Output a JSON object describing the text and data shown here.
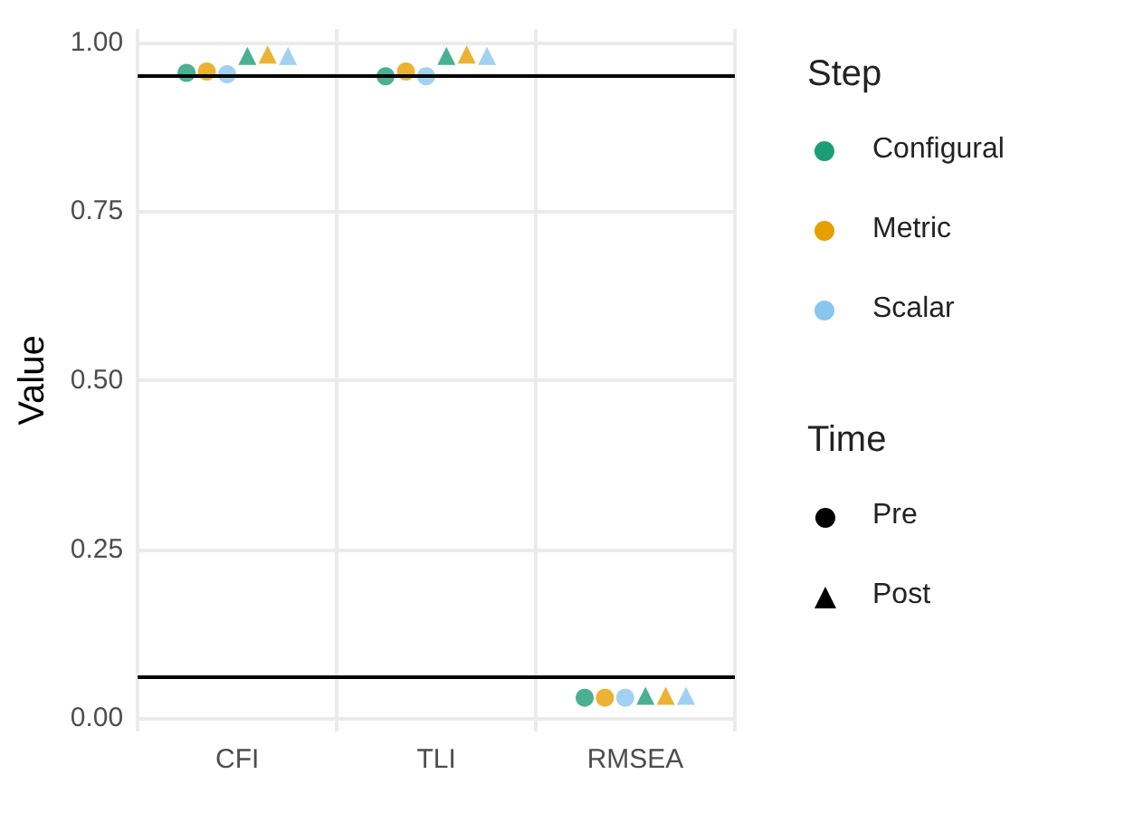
{
  "chart_data": {
    "type": "scatter",
    "ylabel": "Value",
    "categories": [
      "CFI",
      "TLI",
      "RMSEA"
    ],
    "ylim": [
      -0.02,
      1.02
    ],
    "yticks": [
      {
        "value": 0,
        "label": "0.00"
      },
      {
        "value": 0.25,
        "label": "0.25"
      },
      {
        "value": 0.5,
        "label": "0.50"
      },
      {
        "value": 0.75,
        "label": "0.75"
      },
      {
        "value": 1,
        "label": "1.00"
      }
    ],
    "grid": true,
    "legend": "right",
    "legend_title": "Step",
    "series": [
      {
        "name": "Configural",
        "color": "#1b9e77",
        "marker": "circle",
        "values": [
          0.955,
          0.95,
          0.03
        ]
      },
      {
        "name": "Metric",
        "color": "#e69f00",
        "marker": "circle",
        "values": [
          0.957,
          0.957,
          0.03
        ]
      },
      {
        "name": "Scalar",
        "color": "#88c6ed",
        "marker": "circle",
        "values": [
          0.953,
          0.95,
          0.03
        ]
      },
      {
        "color": "#1b9e77",
        "marker": "triangle",
        "values": [
          0.98,
          0.98,
          0.033
        ]
      },
      {
        "color": "#e69f00",
        "marker": "triangle",
        "values": [
          0.982,
          0.982,
          0.033
        ]
      },
      {
        "color": "#88c6ed",
        "marker": "triangle",
        "values": [
          0.98,
          0.98,
          0.033
        ]
      }
    ],
    "ref_lines": [
      {
        "axis": "y",
        "value": 0.95,
        "color": "#000000"
      },
      {
        "axis": "y",
        "value": 0.06,
        "color": "#000000"
      }
    ],
    "annotations": [
      "Time",
      "Pre",
      "Post"
    ]
  }
}
